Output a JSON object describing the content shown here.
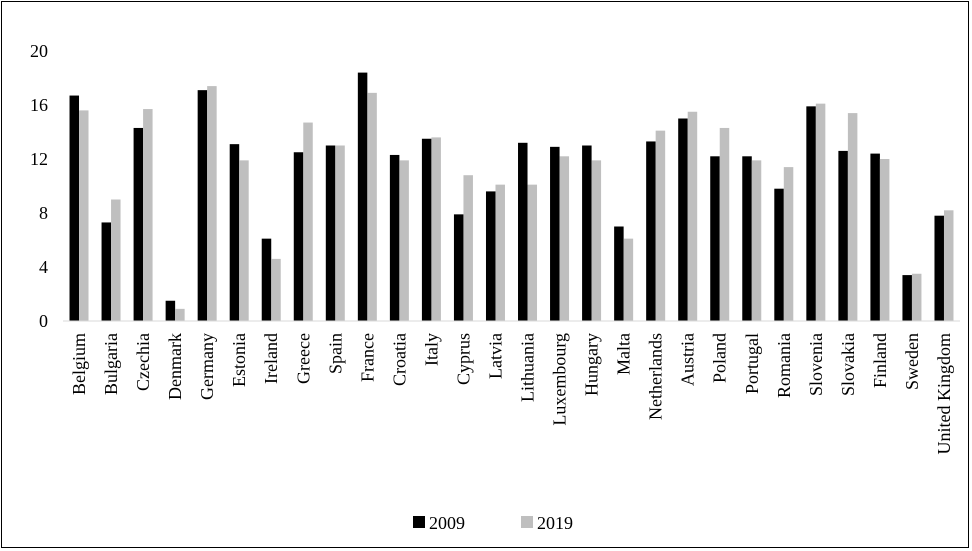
{
  "chart_data": {
    "type": "bar",
    "categories": [
      "Belgium",
      "Bulgaria",
      "Czechia",
      "Denmark",
      "Germany",
      "Estonia",
      "Ireland",
      "Greece",
      "Spain",
      "France",
      "Croatia",
      "Italy",
      "Cyprus",
      "Latvia",
      "Lithuania",
      "Luxembourg",
      "Hungary",
      "Malta",
      "Netherlands",
      "Austria",
      "Poland",
      "Portugal",
      "Romania",
      "Slovenia",
      "Slovakia",
      "Finland",
      "Sweden",
      "United Kingdom"
    ],
    "series": [
      {
        "name": "2009",
        "color": "#000000",
        "values": [
          16.7,
          7.3,
          14.3,
          1.5,
          17.1,
          13.1,
          6.1,
          12.5,
          13.0,
          18.4,
          12.3,
          13.5,
          7.9,
          9.6,
          13.2,
          12.9,
          13.0,
          7.0,
          13.3,
          15.0,
          12.2,
          12.2,
          9.8,
          15.9,
          12.6,
          12.4,
          3.4,
          7.8
        ]
      },
      {
        "name": "2019",
        "color": "#bfbfbf",
        "values": [
          15.6,
          9.0,
          15.7,
          0.9,
          17.4,
          11.9,
          4.6,
          14.7,
          13.0,
          16.9,
          11.9,
          13.6,
          10.8,
          10.1,
          10.1,
          12.2,
          11.9,
          6.1,
          14.1,
          15.5,
          14.3,
          11.9,
          11.4,
          16.1,
          15.4,
          12.0,
          3.5,
          8.2
        ]
      }
    ],
    "yticks": [
      "0",
      "4",
      "8",
      "12",
      "16",
      "20"
    ],
    "ylim": [
      0,
      20
    ],
    "grid": false,
    "legend": "bottom-center",
    "title": "",
    "xlabel": "",
    "ylabel": ""
  }
}
